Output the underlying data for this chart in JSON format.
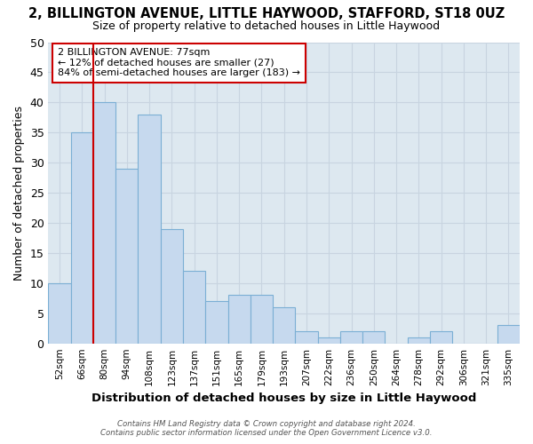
{
  "title": "2, BILLINGTON AVENUE, LITTLE HAYWOOD, STAFFORD, ST18 0UZ",
  "subtitle": "Size of property relative to detached houses in Little Haywood",
  "xlabel": "Distribution of detached houses by size in Little Haywood",
  "ylabel": "Number of detached properties",
  "categories": [
    "52sqm",
    "66sqm",
    "80sqm",
    "94sqm",
    "108sqm",
    "123sqm",
    "137sqm",
    "151sqm",
    "165sqm",
    "179sqm",
    "193sqm",
    "207sqm",
    "222sqm",
    "236sqm",
    "250sqm",
    "264sqm",
    "278sqm",
    "292sqm",
    "306sqm",
    "321sqm",
    "335sqm"
  ],
  "values": [
    10,
    35,
    40,
    29,
    38,
    19,
    12,
    7,
    8,
    8,
    6,
    2,
    1,
    2,
    2,
    0,
    1,
    2,
    0,
    0,
    3
  ],
  "bar_color": "#c6d9ee",
  "bar_edge_color": "#7bafd4",
  "red_line_index": 2,
  "annotation_line1": "2 BILLINGTON AVENUE: 77sqm",
  "annotation_line2": "← 12% of detached houses are smaller (27)",
  "annotation_line3": "84% of semi-detached houses are larger (183) →",
  "annotation_box_facecolor": "#ffffff",
  "annotation_box_edgecolor": "#cc0000",
  "red_line_color": "#cc0000",
  "grid_color": "#c8d4e0",
  "background_color": "#dde8f0",
  "footer_line1": "Contains HM Land Registry data © Crown copyright and database right 2024.",
  "footer_line2": "Contains public sector information licensed under the Open Government Licence v3.0.",
  "ylim": [
    0,
    50
  ],
  "yticks": [
    0,
    5,
    10,
    15,
    20,
    25,
    30,
    35,
    40,
    45,
    50
  ]
}
